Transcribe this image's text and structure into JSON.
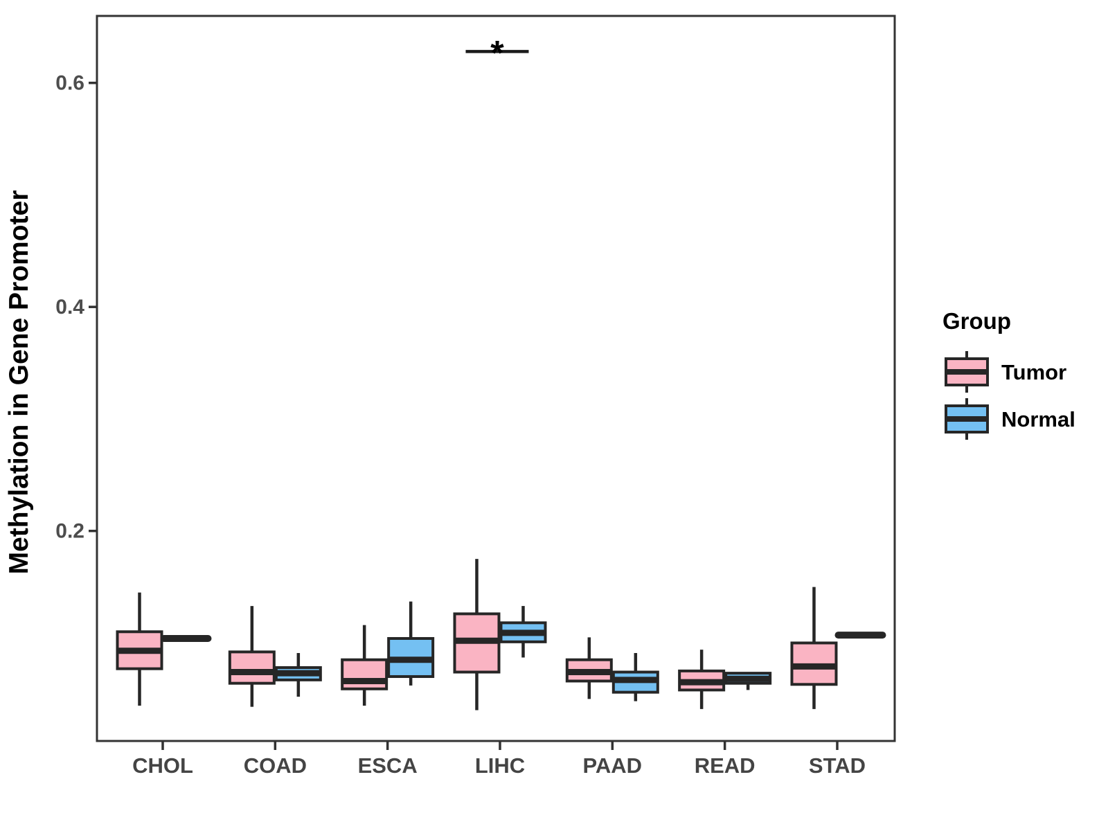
{
  "figure": {
    "background": "#ffffff",
    "legend": {
      "title": "Group",
      "items": [
        {
          "label": "Tumor",
          "color": "#FAB4C3"
        },
        {
          "label": "Normal",
          "color": "#74C0F2"
        }
      ]
    }
  },
  "chart_data": {
    "type": "boxplot",
    "title": "",
    "xlabel": "",
    "ylabel": "Methylation in Gene Promoter",
    "categories": [
      "CHOL",
      "COAD",
      "ESCA",
      "LIHC",
      "PAAD",
      "READ",
      "STAD"
    ],
    "groups": [
      "Tumor",
      "Normal"
    ],
    "yticks": [
      0.2,
      0.4,
      0.6
    ],
    "ylim": [
      0.012,
      0.66
    ],
    "grid": "off",
    "legend_position": "right",
    "colors": {
      "Tumor": "#FAB4C3",
      "Normal": "#74C0F2",
      "stroke": "#262626"
    },
    "series": [
      {
        "name": "Tumor",
        "color": "#FAB4C3",
        "stats": [
          {
            "category": "CHOL",
            "min": 0.044,
            "q1": 0.077,
            "median": 0.093,
            "q3": 0.11,
            "max": 0.145
          },
          {
            "category": "COAD",
            "min": 0.043,
            "q1": 0.064,
            "median": 0.074,
            "q3": 0.092,
            "max": 0.133
          },
          {
            "category": "ESCA",
            "min": 0.044,
            "q1": 0.059,
            "median": 0.066,
            "q3": 0.085,
            "max": 0.116
          },
          {
            "category": "LIHC",
            "min": 0.04,
            "q1": 0.074,
            "median": 0.102,
            "q3": 0.126,
            "max": 0.175
          },
          {
            "category": "PAAD",
            "min": 0.05,
            "q1": 0.066,
            "median": 0.074,
            "q3": 0.085,
            "max": 0.105
          },
          {
            "category": "READ",
            "min": 0.041,
            "q1": 0.058,
            "median": 0.065,
            "q3": 0.075,
            "max": 0.094
          },
          {
            "category": "STAD",
            "min": 0.041,
            "q1": 0.063,
            "median": 0.079,
            "q3": 0.1,
            "max": 0.15
          }
        ]
      },
      {
        "name": "Normal",
        "color": "#74C0F2",
        "stats": [
          {
            "category": "CHOL",
            "min": 0.104,
            "q1": 0.104,
            "median": 0.104,
            "q3": 0.104,
            "max": 0.104
          },
          {
            "category": "COAD",
            "min": 0.052,
            "q1": 0.067,
            "median": 0.073,
            "q3": 0.078,
            "max": 0.091
          },
          {
            "category": "ESCA",
            "min": 0.062,
            "q1": 0.07,
            "median": 0.085,
            "q3": 0.104,
            "max": 0.137
          },
          {
            "category": "LIHC",
            "min": 0.087,
            "q1": 0.101,
            "median": 0.109,
            "q3": 0.118,
            "max": 0.133
          },
          {
            "category": "PAAD",
            "min": 0.048,
            "q1": 0.056,
            "median": 0.067,
            "q3": 0.074,
            "max": 0.091
          },
          {
            "category": "READ",
            "min": 0.058,
            "q1": 0.064,
            "median": 0.068,
            "q3": 0.073,
            "max": 0.073
          },
          {
            "category": "STAD",
            "min": 0.107,
            "q1": 0.107,
            "median": 0.107,
            "q3": 0.107,
            "max": 0.107
          }
        ]
      }
    ],
    "annotations": [
      {
        "type": "significance",
        "label": "*",
        "category": "LIHC",
        "between": [
          "Tumor",
          "Normal"
        ],
        "y": 0.628
      }
    ]
  }
}
